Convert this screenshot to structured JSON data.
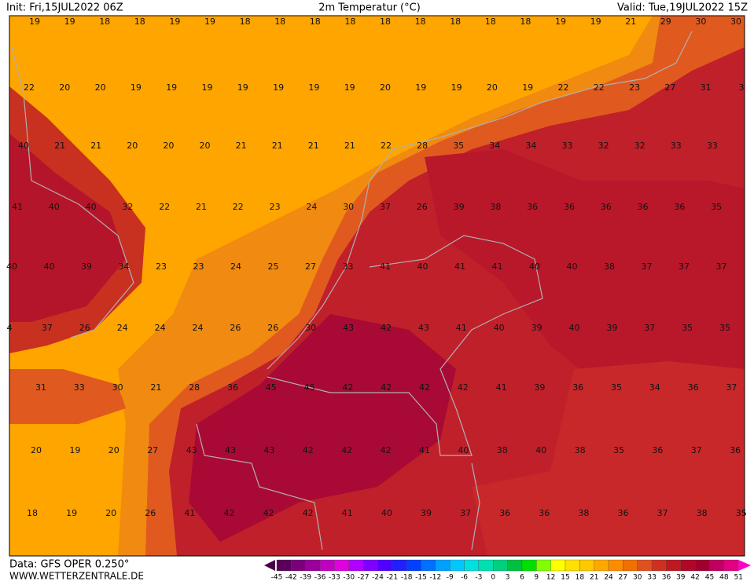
{
  "header": {
    "init": "Init: Fri,15JUL2022 06Z",
    "title": "2m Temperatur (°C)",
    "valid": "Valid: Tue,19JUL2022 15Z"
  },
  "footer": {
    "source": "Data: GFS OPER 0.250°",
    "site": "WWW.WETTERZENTRALE.DE"
  },
  "map": {
    "rows": [
      [
        19,
        19,
        18,
        18,
        19,
        19,
        18,
        18,
        18,
        18,
        18,
        18,
        18,
        18,
        18,
        19,
        19,
        21,
        29,
        30,
        30
      ],
      [
        22,
        20,
        20,
        19,
        19,
        19,
        19,
        19,
        19,
        19,
        20,
        19,
        19,
        20,
        19,
        22,
        22,
        23,
        27,
        31,
        3
      ],
      [
        40,
        21,
        21,
        20,
        20,
        20,
        21,
        21,
        21,
        21,
        22,
        28,
        35,
        34,
        34,
        33,
        32,
        32,
        33,
        33
      ],
      [
        41,
        40,
        40,
        32,
        22,
        21,
        22,
        23,
        24,
        30,
        37,
        26,
        39,
        38,
        36,
        36,
        36,
        36,
        36,
        35
      ],
      [
        40,
        40,
        39,
        34,
        23,
        23,
        24,
        25,
        27,
        33,
        41,
        40,
        41,
        41,
        40,
        40,
        38,
        37,
        37,
        37
      ],
      [
        4,
        37,
        26,
        24,
        24,
        24,
        26,
        26,
        30,
        43,
        42,
        43,
        41,
        40,
        39,
        40,
        39,
        37,
        35,
        35
      ],
      [
        31,
        33,
        30,
        21,
        28,
        36,
        45,
        45,
        42,
        42,
        42,
        42,
        41,
        39,
        36,
        35,
        34,
        36,
        37
      ],
      [
        20,
        19,
        20,
        27,
        43,
        43,
        43,
        42,
        42,
        42,
        41,
        40,
        38,
        40,
        38,
        35,
        36,
        37,
        36
      ],
      [
        18,
        19,
        20,
        26,
        41,
        42,
        42,
        42,
        41,
        40,
        39,
        37,
        36,
        36,
        38,
        36,
        37,
        38,
        35
      ]
    ]
  },
  "colorbar": {
    "ticks": [
      -45,
      -42,
      -39,
      -36,
      -33,
      -30,
      -27,
      -24,
      -21,
      -18,
      -15,
      -12,
      -9,
      -6,
      -3,
      0,
      3,
      6,
      9,
      12,
      15,
      18,
      21,
      24,
      27,
      30,
      33,
      36,
      39,
      42,
      45,
      48,
      51
    ],
    "colors": [
      "#5a005a",
      "#7a007a",
      "#9a009a",
      "#c000c0",
      "#e000e0",
      "#b000ff",
      "#8000ff",
      "#5000ff",
      "#2020ff",
      "#0040ff",
      "#0070ff",
      "#00a0ff",
      "#00c8ff",
      "#00e0e0",
      "#00e0b0",
      "#00d080",
      "#00c040",
      "#00e000",
      "#80ff00",
      "#ffff00",
      "#ffe000",
      "#ffc800",
      "#ffa800",
      "#ff8c00",
      "#f07000",
      "#e05020",
      "#d03020",
      "#c01820",
      "#b00828",
      "#a00030",
      "#c00060",
      "#e00080"
    ]
  }
}
